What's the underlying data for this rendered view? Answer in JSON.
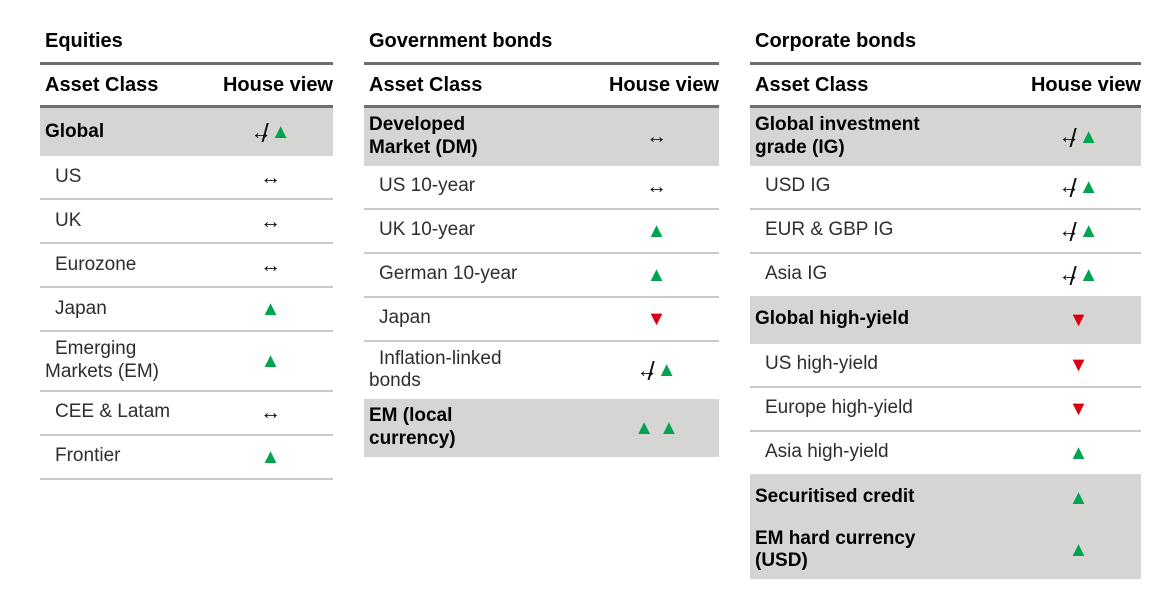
{
  "columns": {
    "asset_class": "Asset Class",
    "house_view": "House view"
  },
  "legend_symbols": {
    "neutral": "↔",
    "up": "▲",
    "down": "▼",
    "slash": "/"
  },
  "colors": {
    "positive_green": "#00A44F",
    "negative_red": "#DB0011",
    "section_band_grey": "#D5D5D3",
    "thick_rule_grey": "#6F6F6F",
    "thin_rule_grey": "#C9C9C9"
  },
  "tables": [
    {
      "title": "Equities",
      "rows": [
        {
          "label": "Global",
          "section": true,
          "view": "neutral-up"
        },
        {
          "label": "US",
          "section": false,
          "view": "neutral"
        },
        {
          "label": "UK",
          "section": false,
          "view": "neutral"
        },
        {
          "label": "Eurozone",
          "section": false,
          "view": "neutral"
        },
        {
          "label": "Japan",
          "section": false,
          "view": "up"
        },
        {
          "label": "Emerging Markets (EM)",
          "section": false,
          "view": "up"
        },
        {
          "label": "CEE & Latam",
          "section": false,
          "view": "neutral"
        },
        {
          "label": "Frontier",
          "section": false,
          "view": "up"
        }
      ]
    },
    {
      "title": "Government bonds",
      "rows": [
        {
          "label": "Developed Market (DM)",
          "section": true,
          "view": "neutral"
        },
        {
          "label": "US 10-year",
          "section": false,
          "view": "neutral"
        },
        {
          "label": "UK 10-year",
          "section": false,
          "view": "up"
        },
        {
          "label": "German 10-year",
          "section": false,
          "view": "up"
        },
        {
          "label": "Japan",
          "section": false,
          "view": "down"
        },
        {
          "label": "Inflation-linked bonds",
          "section": false,
          "view": "neutral-up"
        },
        {
          "label": "EM (local currency)",
          "section": true,
          "view": "up-up"
        }
      ]
    },
    {
      "title": "Corporate bonds",
      "rows": [
        {
          "label": "Global investment grade (IG)",
          "section": true,
          "view": "neutral-up"
        },
        {
          "label": "USD IG",
          "section": false,
          "view": "neutral-up"
        },
        {
          "label": "EUR & GBP IG",
          "section": false,
          "view": "neutral-up"
        },
        {
          "label": "Asia IG",
          "section": false,
          "view": "neutral-up"
        },
        {
          "label": "Global high-yield",
          "section": true,
          "view": "down"
        },
        {
          "label": "US high-yield",
          "section": false,
          "view": "down"
        },
        {
          "label": "Europe high-yield",
          "section": false,
          "view": "down"
        },
        {
          "label": "Asia high-yield",
          "section": false,
          "view": "up"
        },
        {
          "label": "Securitised credit",
          "section": true,
          "view": "up"
        },
        {
          "label": "EM hard currency (USD)",
          "section": true,
          "view": "up"
        }
      ]
    }
  ]
}
